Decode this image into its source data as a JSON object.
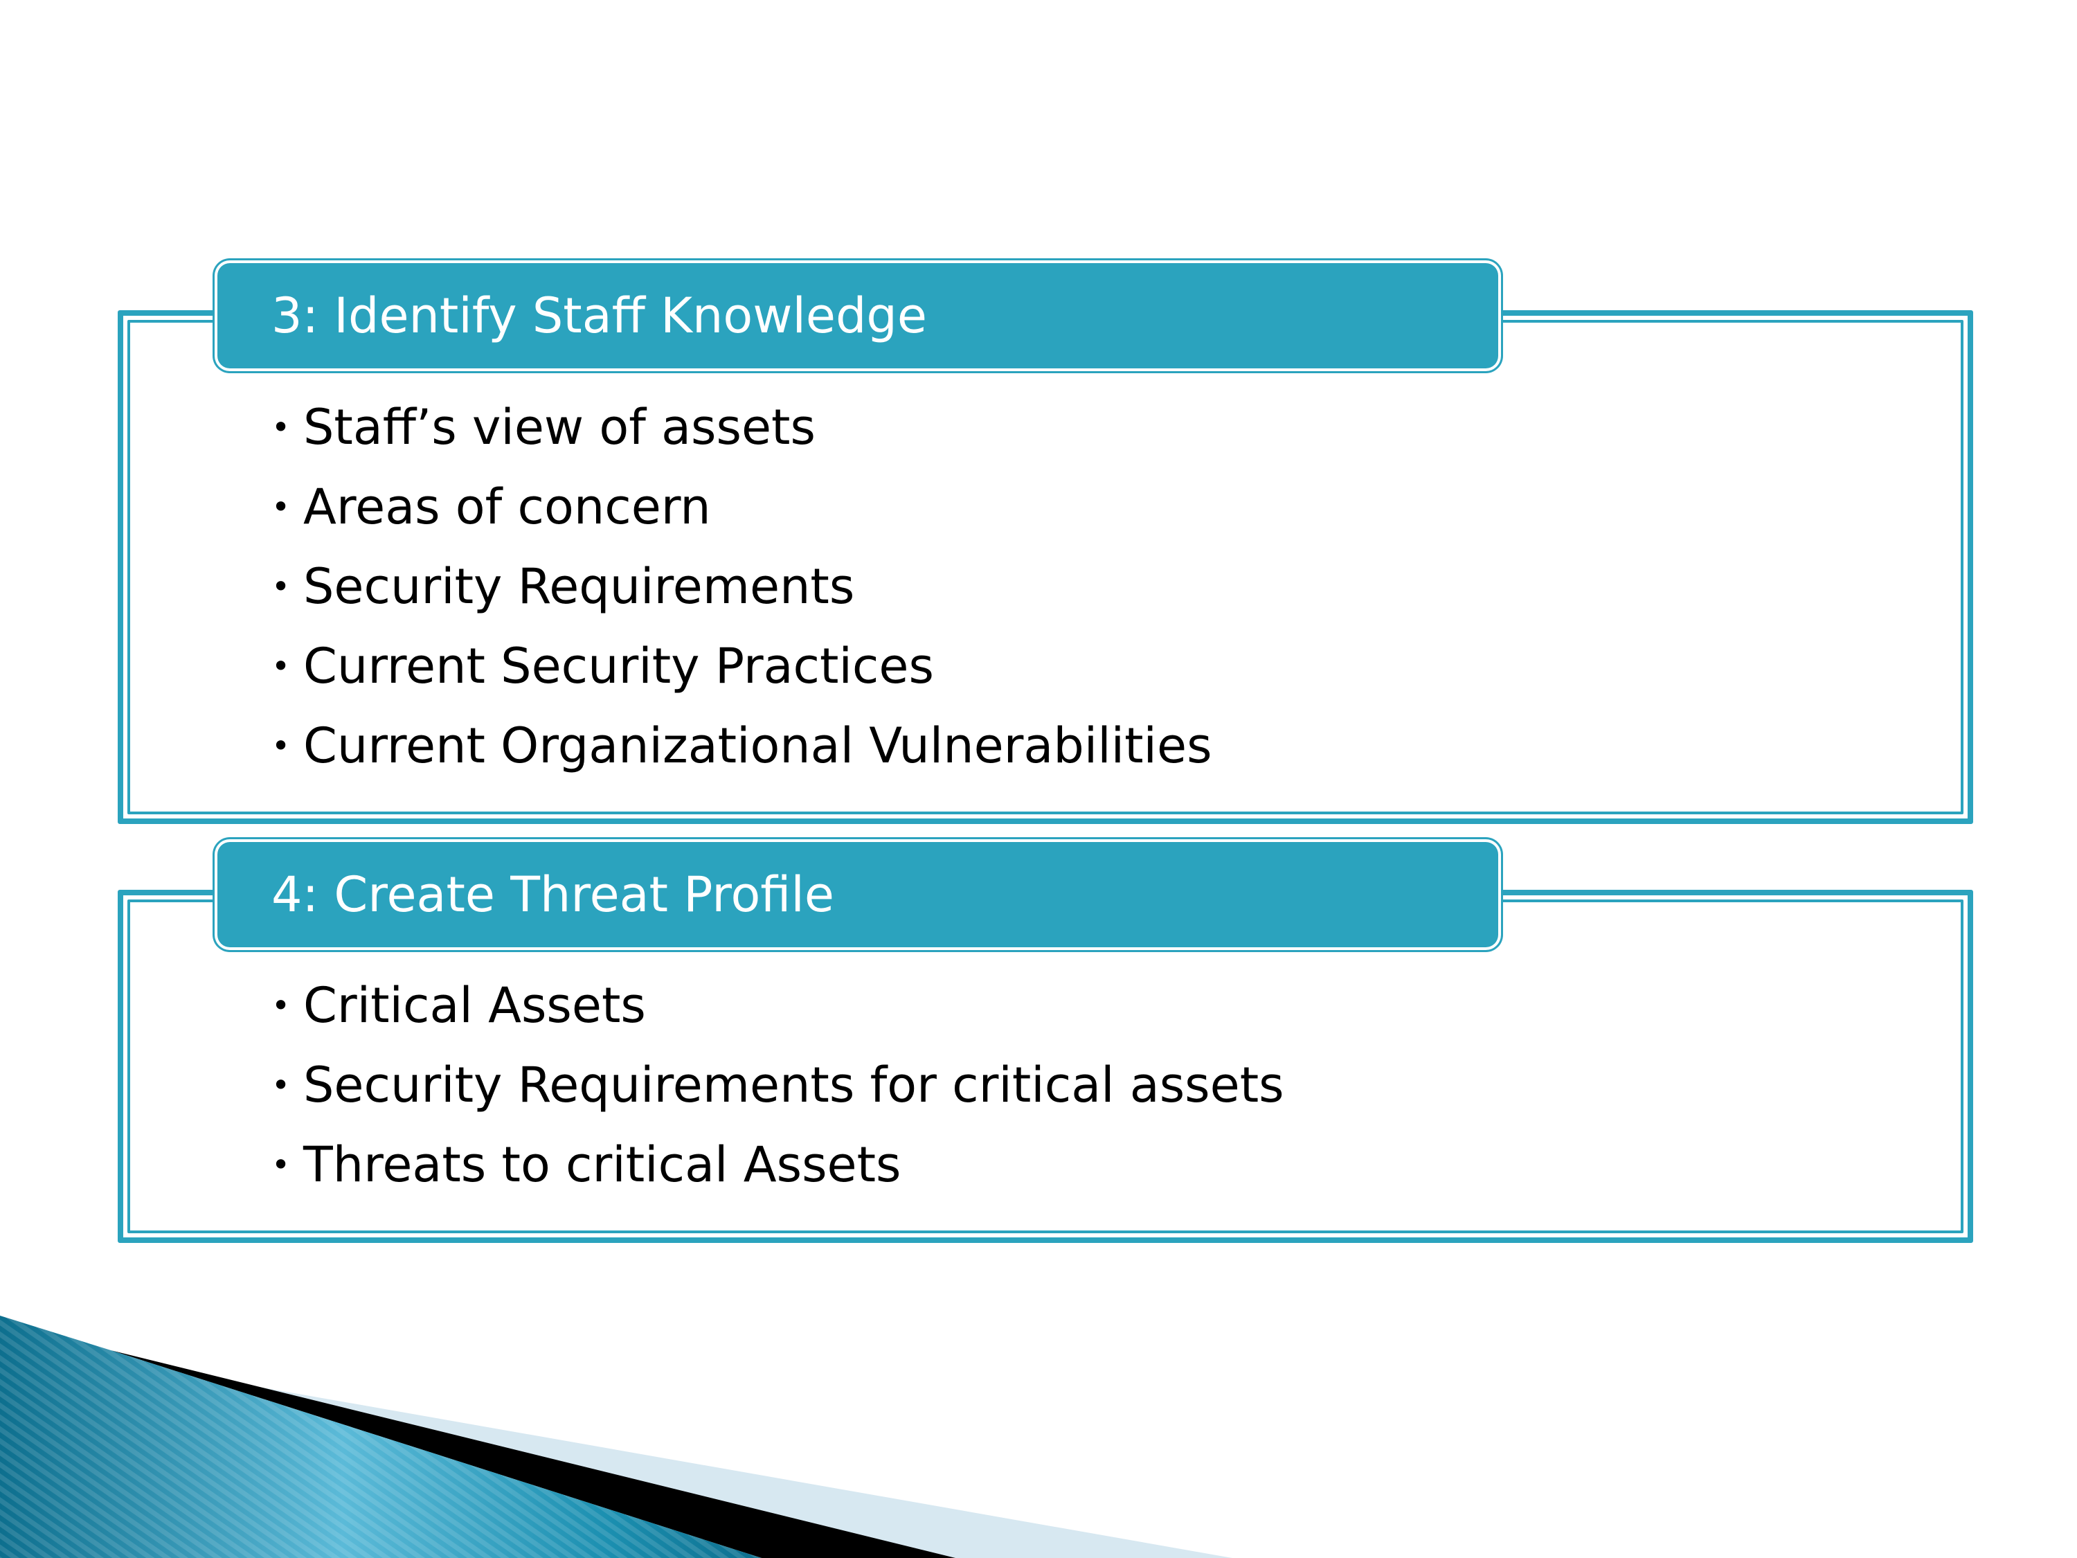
{
  "sections": [
    {
      "heading": "3: Identify Staff Knowledge",
      "items": [
        "Staff’s view of assets",
        "Areas of concern",
        "Security Requirements",
        "Current Security Practices",
        "Current Organizational Vulnerabilities"
      ]
    },
    {
      "heading": "4: Create Threat Profile",
      "items": [
        "Critical Assets",
        "Security Requirements for critical assets",
        "Threats to critical Assets"
      ]
    }
  ],
  "bullet_glyph": "•",
  "colors": {
    "accent": "#2ba3be",
    "text": "#000000",
    "header_text": "#ffffff"
  }
}
